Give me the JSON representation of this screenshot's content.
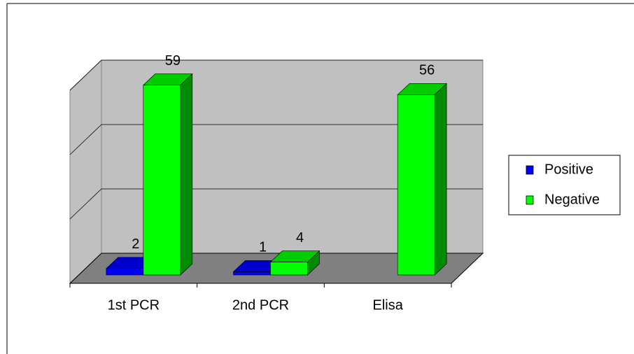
{
  "chart_data": {
    "type": "bar3d",
    "categories": [
      "1st PCR",
      "2nd PCR",
      "Elisa"
    ],
    "series": [
      {
        "name": "Positive",
        "color": "#0000ff",
        "values": [
          2,
          1,
          null
        ]
      },
      {
        "name": "Negative",
        "color": "#00ff00",
        "values": [
          59,
          4,
          56
        ]
      }
    ],
    "ylim": [
      0,
      60
    ],
    "yticks": [
      0,
      20,
      40,
      60
    ],
    "grid": true,
    "legend": "right"
  }
}
